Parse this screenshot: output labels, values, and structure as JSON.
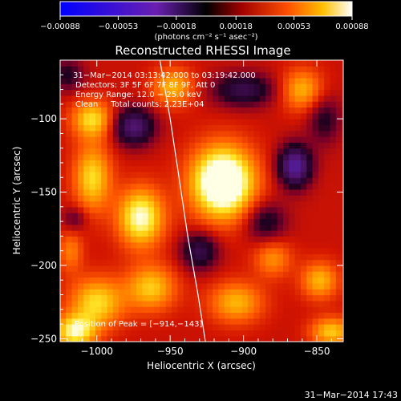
{
  "chart_data": {
    "type": "heatmap",
    "title": "Reconstructed RHESSI Image",
    "xlabel": "Heliocentric X (arcsec)",
    "ylabel": "Heliocentric Y (arcsec)",
    "xlim": [
      -1025,
      -832
    ],
    "ylim": [
      -252,
      -60
    ],
    "xticks": [
      -1000,
      -950,
      -900,
      -850
    ],
    "yticks": [
      -100,
      -150,
      -200,
      -250
    ],
    "xtick_labels": [
      "−1000",
      "−950",
      "−900",
      "−850"
    ],
    "ytick_labels": [
      "−100",
      "−150",
      "−200",
      "−250"
    ],
    "colorbar": {
      "range": [
        -0.00088,
        0.00088
      ],
      "ticks": [
        -0.00088,
        -0.00053,
        -0.00018,
        0.00018,
        0.00053,
        0.00088
      ],
      "tick_labels": [
        "−0.00088",
        "−0.00053",
        "−0.00018",
        "0.00018",
        "0.00053",
        "0.00088"
      ],
      "unit_label": "(photons cm⁻² s⁻¹ asec⁻²)"
    },
    "annotations": {
      "time_range": "31−Mar−2014 03:13:42.000 to 03:19:42.000",
      "detectors": "Detectors: 3F 5F 6F 7F 8F 9F, Att 0",
      "energy_range": "Energy Range: 12.0 − 25.0 keV",
      "clean_counts": "Clean     Total counts: 2.23E+04",
      "peak_position": "Position of Peak = [−914,−143]"
    },
    "peak": [
      -914,
      -143
    ],
    "sources": [
      {
        "x": -914,
        "y": -143,
        "sx": 15,
        "sy": 17,
        "amp": 1.05
      },
      {
        "x": -970,
        "y": -167,
        "sx": 11,
        "sy": 14,
        "amp": 0.72
      },
      {
        "x": -1003,
        "y": -100,
        "sx": 10,
        "sy": 9,
        "amp": 0.55
      },
      {
        "x": -1003,
        "y": -140,
        "sx": 9,
        "sy": 16,
        "amp": 0.55
      },
      {
        "x": -963,
        "y": -215,
        "sx": 12,
        "sy": 11,
        "amp": 0.5
      },
      {
        "x": -1000,
        "y": -225,
        "sx": 13,
        "sy": 12,
        "amp": 0.55
      },
      {
        "x": -1015,
        "y": -245,
        "sx": 10,
        "sy": 8,
        "amp": 0.65
      },
      {
        "x": -905,
        "y": -225,
        "sx": 13,
        "sy": 10,
        "amp": 0.45
      },
      {
        "x": -880,
        "y": -195,
        "sx": 9,
        "sy": 9,
        "amp": 0.35
      },
      {
        "x": -848,
        "y": -210,
        "sx": 9,
        "sy": 9,
        "amp": 0.45
      },
      {
        "x": -840,
        "y": -245,
        "sx": 10,
        "sy": 7,
        "amp": 0.5
      },
      {
        "x": -860,
        "y": -80,
        "sx": 10,
        "sy": 10,
        "amp": 0.45
      },
      {
        "x": -948,
        "y": -78,
        "sx": 10,
        "sy": 9,
        "amp": 0.45
      },
      {
        "x": -1018,
        "y": -190,
        "sx": 6,
        "sy": 10,
        "amp": 0.3
      },
      {
        "x": -865,
        "y": -132,
        "sx": 8,
        "sy": 10,
        "amp": -0.75
      },
      {
        "x": -975,
        "y": -105,
        "sx": 10,
        "sy": 9,
        "amp": -0.6
      },
      {
        "x": -900,
        "y": -80,
        "sx": 15,
        "sy": 8,
        "amp": -0.45
      },
      {
        "x": -930,
        "y": -190,
        "sx": 9,
        "sy": 9,
        "amp": -0.45
      },
      {
        "x": -885,
        "y": -170,
        "sx": 10,
        "sy": 10,
        "amp": -0.35
      },
      {
        "x": -1020,
        "y": -70,
        "sx": 8,
        "sy": 8,
        "amp": -0.3
      },
      {
        "x": -1015,
        "y": -168,
        "sx": 6,
        "sy": 6,
        "amp": -0.25
      },
      {
        "x": -845,
        "y": -100,
        "sx": 8,
        "sy": 12,
        "amp": -0.3
      }
    ],
    "limb": [
      [
        -957,
        -60
      ],
      [
        -950,
        -100
      ],
      [
        -944,
        -140
      ],
      [
        -938,
        -180
      ],
      [
        -931,
        -220
      ],
      [
        -926,
        -252
      ]
    ],
    "grid": false
  },
  "timestamp": "31−Mar−2014 17:43"
}
